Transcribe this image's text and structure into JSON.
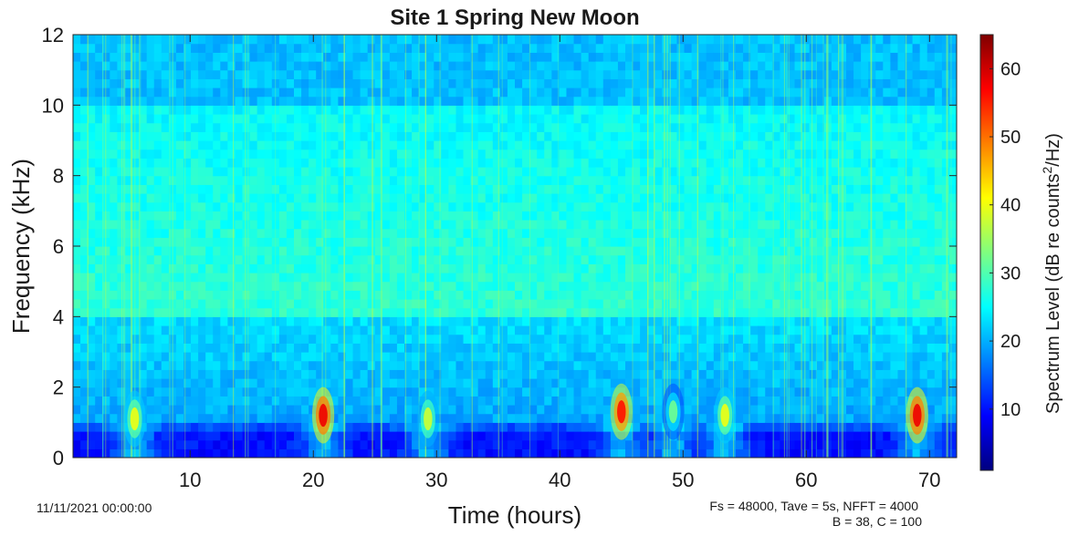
{
  "chart_data": {
    "type": "heatmap",
    "title": "Site 1 Spring New Moon",
    "xlabel": "Time (hours)",
    "ylabel": "Frequency (kHz)",
    "xlim": [
      0.5,
      72.2
    ],
    "ylim": [
      0,
      12
    ],
    "x_ticks": [
      10,
      20,
      30,
      40,
      50,
      60,
      70
    ],
    "y_ticks": [
      0,
      2,
      4,
      6,
      8,
      10,
      12
    ],
    "grid": false,
    "colormap": "jet",
    "colorbar": {
      "label": "Spectrum Level (dB re counts",
      "label_sup": "2",
      "label_tail": "/Hz)",
      "range": [
        1,
        65
      ],
      "ticks": [
        10,
        20,
        30,
        40,
        50,
        60
      ]
    },
    "start_date": "11/11/2021 00:00:00",
    "annotation_line1": "Fs = 48000, Tave = 5s, NFFT = 4000",
    "annotation_line2": "B = 38, C = 100",
    "low_frequency_events": [
      {
        "time_h": 5.5,
        "freq_khz": 1.1,
        "level_db": 40
      },
      {
        "time_h": 20.8,
        "freq_khz": 1.2,
        "level_db": 58
      },
      {
        "time_h": 29.3,
        "freq_khz": 1.1,
        "level_db": 38
      },
      {
        "time_h": 45.0,
        "freq_khz": 1.3,
        "level_db": 56
      },
      {
        "time_h": 49.2,
        "freq_khz": 1.3,
        "level_db": 32
      },
      {
        "time_h": 53.4,
        "freq_khz": 1.2,
        "level_db": 40
      },
      {
        "time_h": 69.0,
        "freq_khz": 1.2,
        "level_db": 58
      }
    ],
    "quiet_low_band": {
      "freq_range_khz": [
        0.1,
        0.8
      ],
      "level_db": 6
    },
    "high_band_level_db": {
      "above_10khz": 21,
      "from_4_to_10khz": 28,
      "below_4khz": 23
    }
  }
}
